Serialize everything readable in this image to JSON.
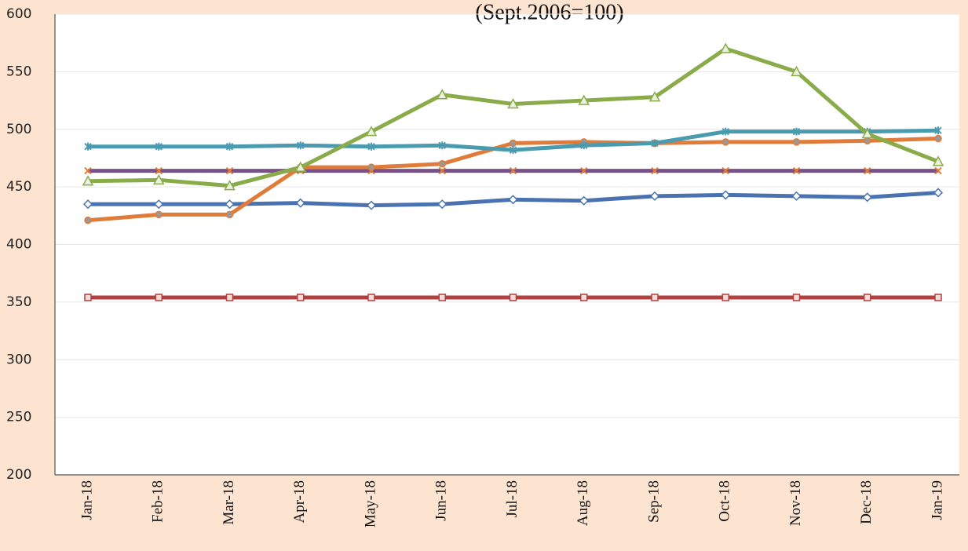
{
  "chart_data": {
    "type": "line",
    "subtitle": "(Sept.2006=100)",
    "categories": [
      "Jan-18",
      "Feb-18",
      "Mar-18",
      "Apr-18",
      "May-18",
      "Jun-18",
      "Jul-18",
      "Aug-18",
      "Sep-18",
      "Oct-18",
      "Nov-18",
      "Dec-18",
      "Jan-19"
    ],
    "series": [
      {
        "color": "#b0413e",
        "marker": "square",
        "values": [
          354,
          354,
          354,
          354,
          354,
          354,
          354,
          354,
          354,
          354,
          354,
          354,
          354
        ]
      },
      {
        "color": "#4a72b0",
        "marker": "diamond",
        "values": [
          435,
          435,
          435,
          436,
          434,
          435,
          439,
          438,
          442,
          443,
          442,
          441,
          445
        ]
      },
      {
        "color": "#7a4f8a",
        "marker": "x",
        "values": [
          464,
          464,
          464,
          464,
          464,
          464,
          464,
          464,
          464,
          464,
          464,
          464,
          464
        ]
      },
      {
        "color": "#e07b39",
        "marker": "circle",
        "values": [
          421,
          426,
          426,
          467,
          467,
          470,
          488,
          489,
          488,
          489,
          489,
          490,
          492
        ]
      },
      {
        "color": "#4a9bb0",
        "marker": "star",
        "values": [
          485,
          485,
          485,
          486,
          485,
          486,
          482,
          486,
          488,
          498,
          498,
          498,
          499
        ]
      },
      {
        "color": "#8aab4a",
        "marker": "triangle",
        "values": [
          455,
          456,
          451,
          467,
          498,
          530,
          522,
          525,
          528,
          570,
          550,
          496,
          472
        ]
      }
    ],
    "ylim": [
      200,
      600
    ],
    "yticks": [
      200,
      250,
      300,
      350,
      400,
      450,
      500,
      550,
      600
    ],
    "grid": true
  }
}
